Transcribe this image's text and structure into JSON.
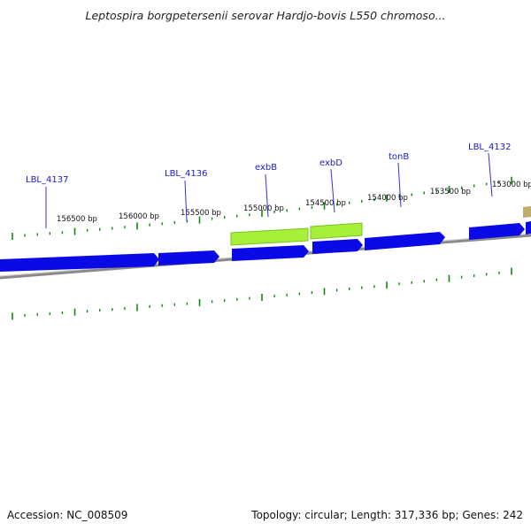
{
  "title": "Leptospira borgpetersenii serovar Hardjo-bovis L550 chromoso...",
  "footer": {
    "accession": "Accession: NC_008509",
    "summary": "Topology: circular; Length: 317,336 bp; Genes: 242"
  },
  "colors": {
    "gene_blue": "#0a0ae6",
    "gene_green": "#a6f03a",
    "gene_tan": "#bfae6a",
    "backbone": "#8a8a8a",
    "tick": "#118811",
    "label_line": "#3333dd"
  },
  "position_labels": [
    "156500 bp",
    "156000 bp",
    "155500 bp",
    "155000 bp",
    "154500 bp",
    "154000 bp",
    "153500 bp",
    "153000 bp"
  ],
  "gene_labels": [
    "LBL_4137",
    "LBL_4136",
    "exbB",
    "exbD",
    "tonB",
    "LBL_4132"
  ]
}
